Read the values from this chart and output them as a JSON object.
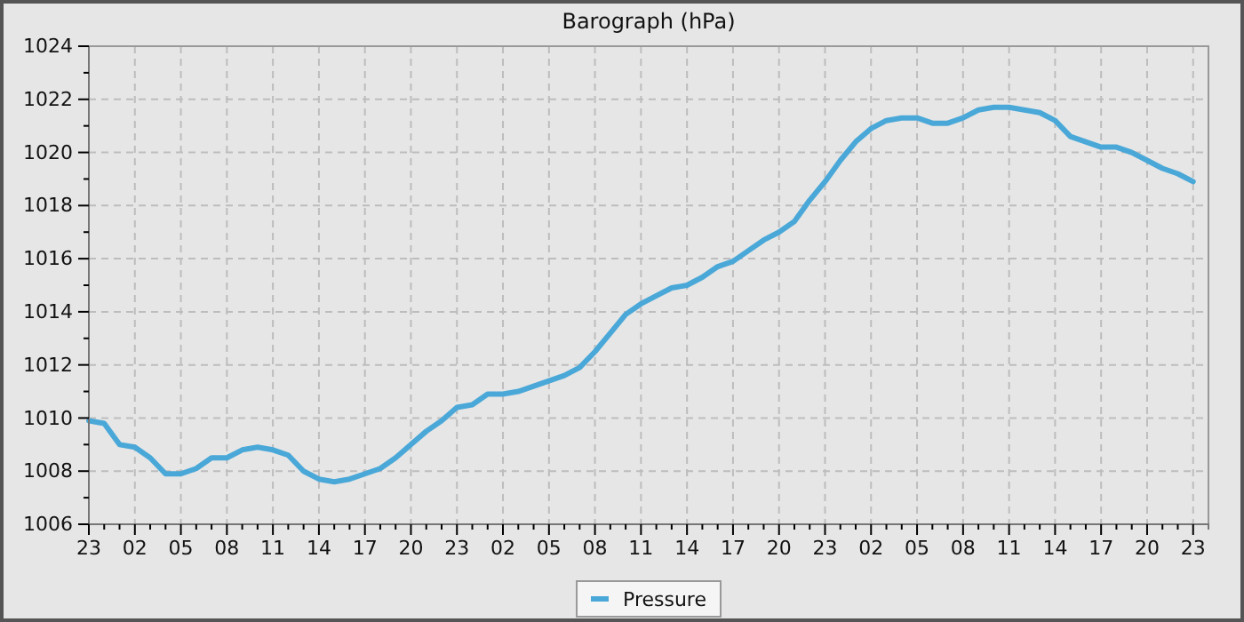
{
  "chart_data": {
    "type": "line",
    "title": "Barograph (hPa)",
    "categories": [
      "23",
      null,
      null,
      "02",
      null,
      null,
      "05",
      null,
      null,
      "08",
      null,
      null,
      "11",
      null,
      null,
      "14",
      null,
      null,
      "17",
      null,
      null,
      "20",
      null,
      null,
      "23",
      null,
      null,
      "02",
      null,
      null,
      "05",
      null,
      null,
      "08",
      null,
      null,
      "11",
      null,
      null,
      "14",
      null,
      null,
      "17",
      null,
      null,
      "20",
      null,
      null,
      "23",
      null,
      null,
      "02",
      null,
      null,
      "05",
      null,
      null,
      "08",
      null,
      null,
      "11",
      null,
      null,
      "14",
      null,
      null,
      "17",
      null,
      null,
      "20",
      null,
      null,
      "23"
    ],
    "series": [
      {
        "name": "Pressure",
        "color": "#4aa8d8",
        "values": [
          1009.9,
          1009.8,
          1009.0,
          1008.9,
          1008.5,
          1007.9,
          1007.9,
          1008.1,
          1008.5,
          1008.5,
          1008.8,
          1008.9,
          1008.8,
          1008.6,
          1008.0,
          1007.7,
          1007.6,
          1007.7,
          1007.9,
          1008.1,
          1008.5,
          1009.0,
          1009.5,
          1009.9,
          1010.4,
          1010.5,
          1010.9,
          1010.9,
          1011.0,
          1011.2,
          1011.4,
          1011.6,
          1011.9,
          1012.5,
          1013.2,
          1013.9,
          1014.3,
          1014.6,
          1014.9,
          1015.0,
          1015.3,
          1015.7,
          1015.9,
          1016.3,
          1016.7,
          1017.0,
          1017.4,
          1018.2,
          1018.9,
          1019.7,
          1020.4,
          1020.9,
          1021.2,
          1021.3,
          1021.3,
          1021.1,
          1021.1,
          1021.3,
          1021.6,
          1021.7,
          1021.7,
          1021.6,
          1021.5,
          1021.2,
          1020.6,
          1020.4,
          1020.2,
          1020.2,
          1020.0,
          1019.7,
          1019.4,
          1019.2,
          1018.9
        ]
      }
    ],
    "ylim": [
      1006,
      1024
    ],
    "yticks": [
      1006,
      {
        "value": 1007,
        "label": null
      },
      1008,
      {
        "value": 1009,
        "label": null
      },
      1010,
      {
        "value": 1011,
        "label": null
      },
      1012,
      {
        "value": 1013,
        "label": null
      },
      1014,
      {
        "value": 1015,
        "label": null
      },
      1016,
      {
        "value": 1017,
        "label": null
      },
      1018,
      {
        "value": 1019,
        "label": null
      },
      1020,
      {
        "value": 1021,
        "label": null
      },
      1022,
      {
        "value": 1023,
        "label": null
      },
      1024
    ],
    "grid": true,
    "legend": "bottom",
    "marker": "none",
    "line_style": "solid"
  }
}
